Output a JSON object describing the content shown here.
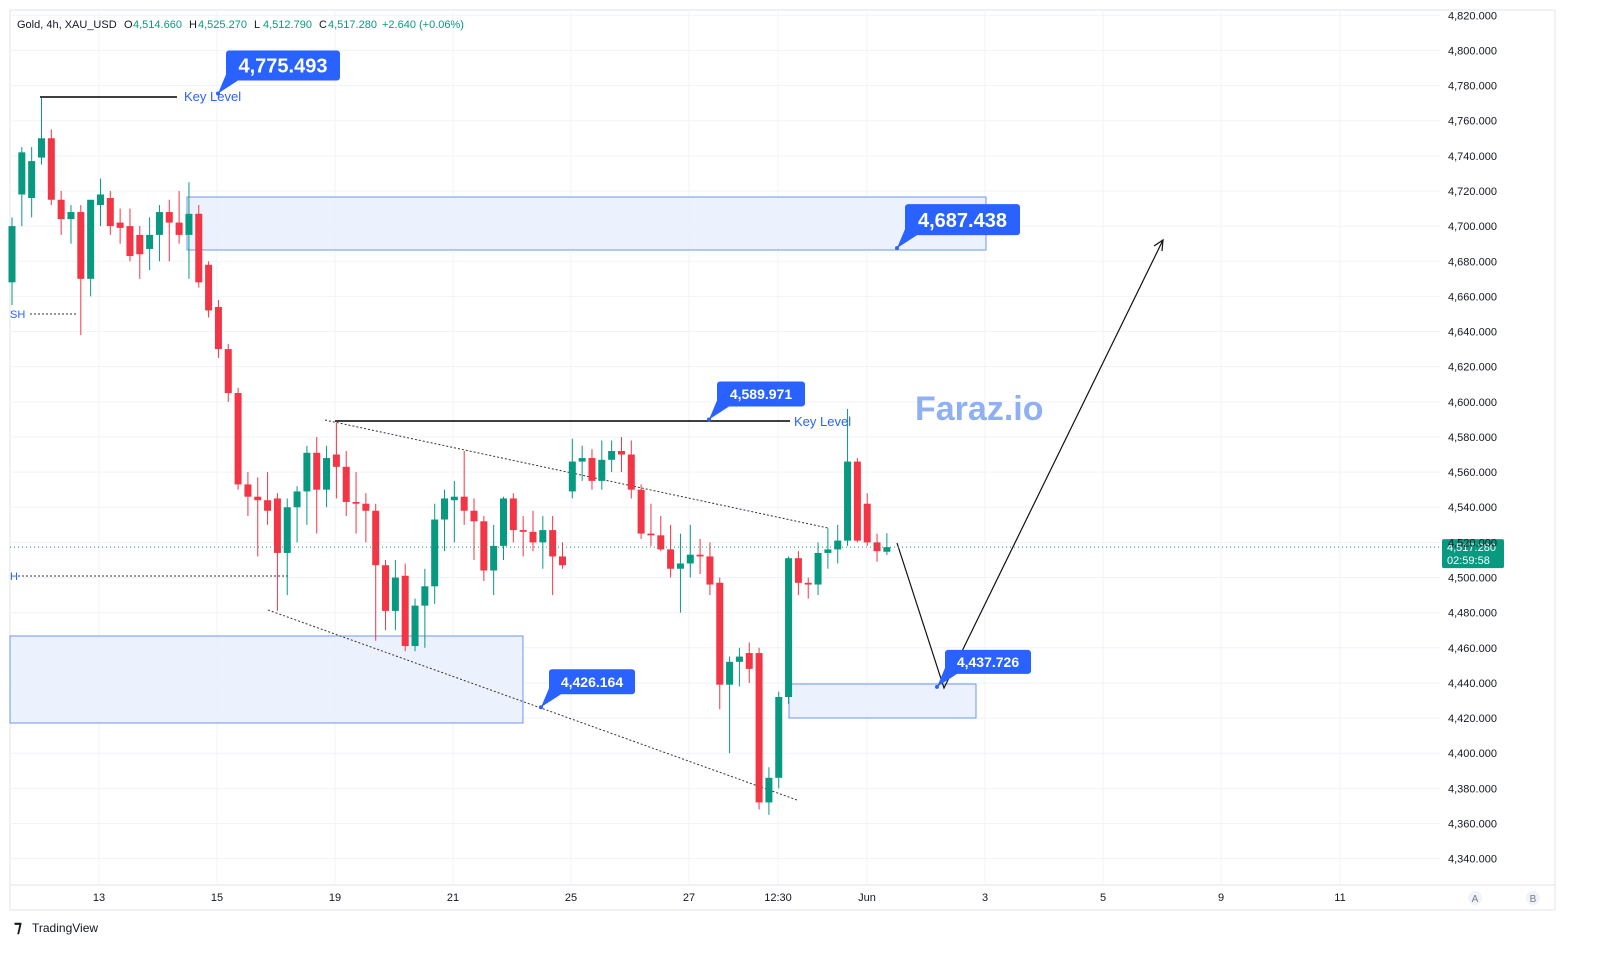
{
  "header": {
    "symbol": "Gold, 4h, XAU_USD",
    "ohlc": [
      {
        "key": "O",
        "value": "4,514.660"
      },
      {
        "key": "H",
        "value": "4,525.270"
      },
      {
        "key": "L",
        "value": "4,512.790"
      },
      {
        "key": "C",
        "value": "4,517.280"
      }
    ],
    "change": "+2.640 (+0.06%)"
  },
  "chart_data": {
    "type": "candlestick",
    "up_color": "#089981",
    "down_color": "#f23645",
    "open": [
      4668,
      4718,
      4716,
      4739,
      4750,
      4715,
      4704,
      4708,
      4670,
      4712,
      4716,
      4702,
      4700,
      4695,
      4687,
      4695,
      4708,
      4702,
      4695,
      4707,
      4678,
      4654,
      4630,
      4605,
      4553,
      4546,
      4544,
      4545,
      4514,
      4540,
      4549,
      4571,
      4550,
      4570,
      4563,
      4543,
      4542,
      4538,
      4507,
      4481,
      4501,
      4461,
      4484,
      4495,
      4533,
      4544,
      4546,
      4538,
      4532,
      4504,
      4518,
      4545,
      4527,
      4526,
      4520,
      4527,
      4512,
      4549,
      4566,
      4568,
      4555,
      4567,
      4572,
      4570,
      4550,
      4525,
      4524,
      4516,
      4505,
      4508,
      4513,
      4512,
      4497,
      4439,
      4452,
      4457,
      4457,
      4372,
      4386,
      4432,
      4511,
      4497,
      4496,
      4514,
      4516,
      4521,
      4566,
      4542,
      4520,
      4514.66
    ],
    "high": [
      4705,
      4745,
      4745,
      4773,
      4755,
      4720,
      4712,
      4712,
      4712,
      4727,
      4720,
      4710,
      4710,
      4700,
      4705,
      4712,
      4715,
      4720,
      4725,
      4712,
      4680,
      4658,
      4633,
      4608,
      4560,
      4557,
      4560,
      4548,
      4545,
      4552,
      4575,
      4580,
      4575,
      4588,
      4572,
      4560,
      4548,
      4542,
      4510,
      4510,
      4508,
      4488,
      4505,
      4542,
      4550,
      4555,
      4572,
      4545,
      4535,
      4530,
      4546,
      4548,
      4535,
      4538,
      4535,
      4535,
      4520,
      4579,
      4575,
      4573,
      4578,
      4578,
      4580,
      4578,
      4553,
      4542,
      4535,
      4530,
      4525,
      4530,
      4522,
      4520,
      4500,
      4455,
      4460,
      4463,
      4460,
      4392,
      4435,
      4512,
      4515,
      4500,
      4520,
      4528,
      4530,
      4596,
      4568,
      4548,
      4525,
      4525.27
    ],
    "low": [
      4655,
      4700,
      4705,
      4735,
      4712,
      4695,
      4690,
      4638,
      4660,
      4700,
      4695,
      4690,
      4680,
      4670,
      4675,
      4680,
      4680,
      4690,
      4670,
      4665,
      4648,
      4625,
      4600,
      4550,
      4535,
      4512,
      4530,
      4481,
      4490,
      4520,
      4530,
      4525,
      4540,
      4545,
      4535,
      4525,
      4520,
      4464,
      4470,
      4470,
      4458,
      4458,
      4460,
      4485,
      4515,
      4520,
      4530,
      4510,
      4498,
      4490,
      4510,
      4520,
      4512,
      4515,
      4505,
      4490,
      4505,
      4545,
      4555,
      4550,
      4550,
      4560,
      4560,
      4545,
      4522,
      4518,
      4515,
      4500,
      4480,
      4500,
      4502,
      4490,
      4425,
      4400,
      4438,
      4440,
      4368,
      4365,
      4380,
      4428,
      4490,
      4488,
      4490,
      4505,
      4508,
      4518,
      4520,
      4518,
      4509,
      4512.79
    ],
    "close": [
      4700,
      4742,
      4737,
      4750,
      4715,
      4704,
      4708,
      4670,
      4715,
      4718,
      4700,
      4699,
      4683,
      4684,
      4695,
      4708,
      4702,
      4695,
      4707,
      4668,
      4652,
      4630,
      4605,
      4553,
      4546,
      4544,
      4538,
      4514,
      4540,
      4549,
      4571,
      4550,
      4568,
      4563,
      4543,
      4542,
      4538,
      4507,
      4481,
      4500,
      4461,
      4484,
      4495,
      4533,
      4545,
      4546,
      4538,
      4532,
      4504,
      4518,
      4545,
      4527,
      4526,
      4520,
      4527,
      4512,
      4507,
      4566,
      4568,
      4555,
      4567,
      4572,
      4570,
      4550,
      4525,
      4524,
      4516,
      4505,
      4508,
      4513,
      4512,
      4496,
      4439,
      4452,
      4455,
      4448,
      4372,
      4386,
      4432,
      4511,
      4497,
      4496,
      4514,
      4516,
      4521,
      4566,
      4521,
      4520,
      4515,
      4517.28
    ],
    "ylim": [
      4325,
      4823
    ],
    "yticks": [
      {
        "value": 4340,
        "label": "4,340.000"
      },
      {
        "value": 4360,
        "label": "4,360.000"
      },
      {
        "value": 4380,
        "label": "4,380.000"
      },
      {
        "value": 4400,
        "label": "4,400.000"
      },
      {
        "value": 4420,
        "label": "4,420.000"
      },
      {
        "value": 4440,
        "label": "4,440.000"
      },
      {
        "value": 4460,
        "label": "4,460.000"
      },
      {
        "value": 4480,
        "label": "4,480.000"
      },
      {
        "value": 4500,
        "label": "4,500.000"
      },
      {
        "value": 4520,
        "label": "4,520.000"
      },
      {
        "value": 4540,
        "label": "4,540.000"
      },
      {
        "value": 4560,
        "label": "4,560.000"
      },
      {
        "value": 4580,
        "label": "4,580.000"
      },
      {
        "value": 4600,
        "label": "4,600.000"
      },
      {
        "value": 4620,
        "label": "4,620.000"
      },
      {
        "value": 4640,
        "label": "4,640.000"
      },
      {
        "value": 4660,
        "label": "4,660.000"
      },
      {
        "value": 4680,
        "label": "4,680.000"
      },
      {
        "value": 4700,
        "label": "4,700.000"
      },
      {
        "value": 4720,
        "label": "4,720.000"
      },
      {
        "value": 4740,
        "label": "4,740.000"
      },
      {
        "value": 4760,
        "label": "4,760.000"
      },
      {
        "value": 4780,
        "label": "4,780.000"
      },
      {
        "value": 4800,
        "label": "4,800.000"
      },
      {
        "value": 4820,
        "label": "4,820.000"
      }
    ],
    "xtick_labels": [
      "13",
      "15",
      "19",
      "21",
      "25",
      "27",
      "12:30",
      "Jun",
      "3",
      "5",
      "9",
      "11"
    ],
    "grid": true,
    "last_price_label": "4,517.280",
    "countdown": "02:59:58",
    "annotations": [
      {
        "value": 4775.493,
        "label": "4,775.493"
      },
      {
        "value": 4687.438,
        "label": "4,687.438"
      },
      {
        "value": 4589.971,
        "label": "4,589.971"
      },
      {
        "value": 4426.164,
        "label": "4,426.164"
      },
      {
        "value": 4437.726,
        "label": "4,437.726"
      }
    ],
    "key_level_labels": [
      "Key Level",
      "Key Level"
    ],
    "side_labels": [
      "SH",
      "H"
    ],
    "watermark": "Faraz.io"
  },
  "scale_buttons": [
    "A",
    "B"
  ],
  "footer": "TradingView"
}
